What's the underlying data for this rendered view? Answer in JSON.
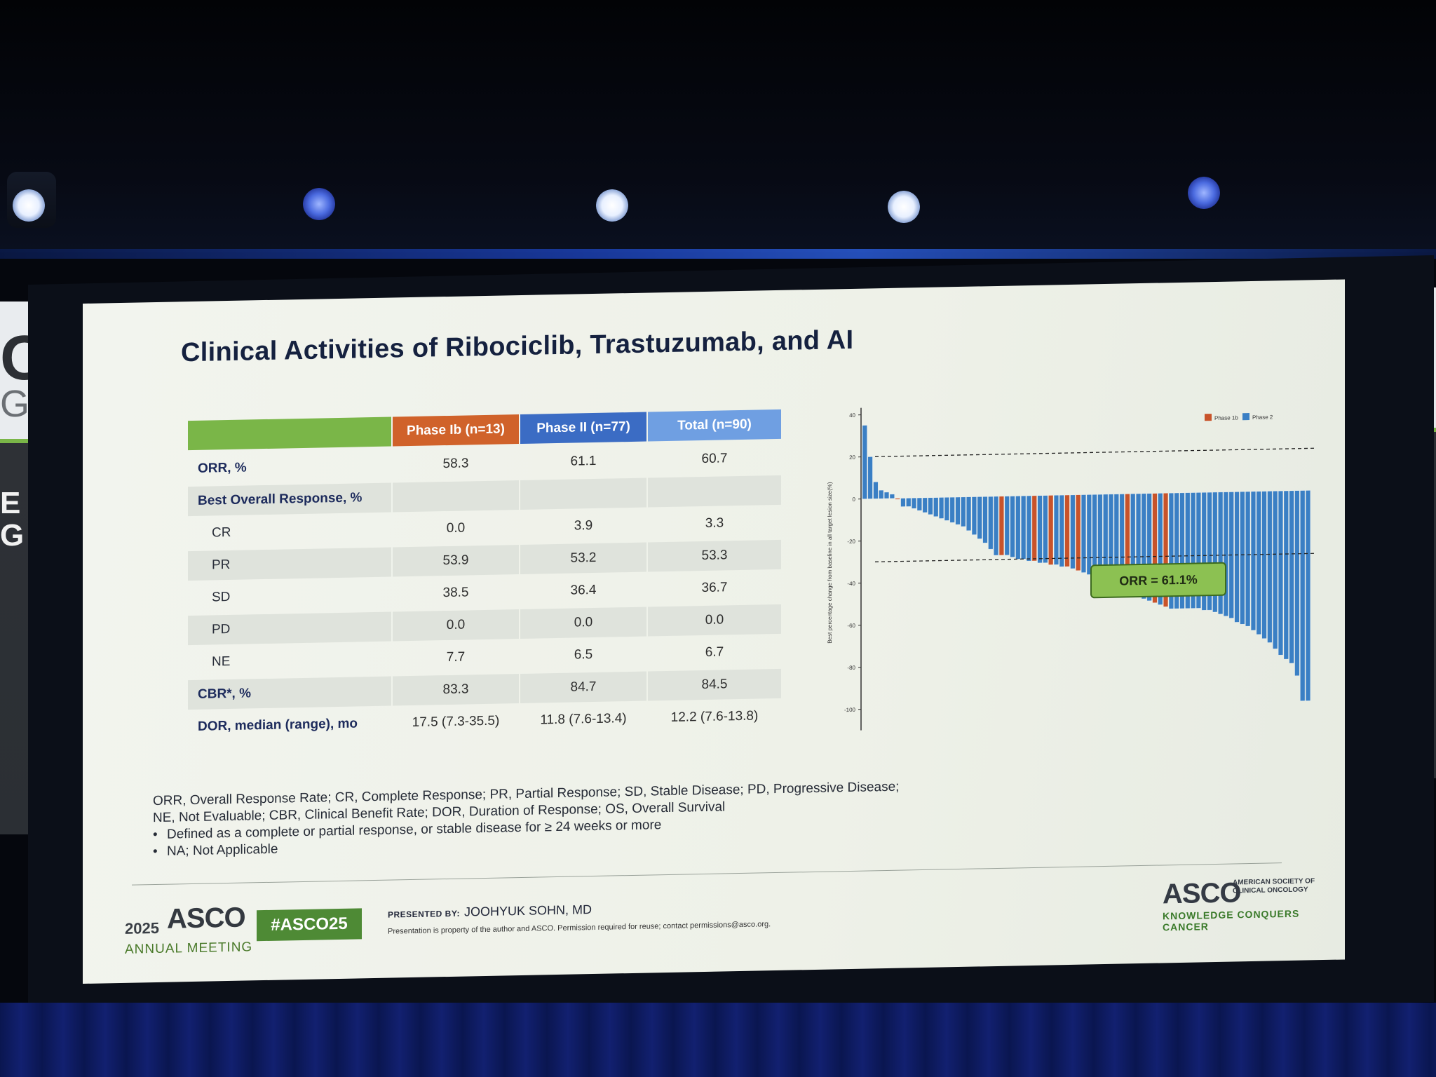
{
  "slide": {
    "title": "Clinical Activities of Ribociclib, Trastuzumab, and AI"
  },
  "table": {
    "headers": [
      "",
      "Phase Ib (n=13)",
      "Phase II (n=77)",
      "Total (n=90)"
    ],
    "rows": [
      {
        "label": "ORR, %",
        "values": [
          "58.3",
          "61.1",
          "60.7"
        ],
        "style": "bold"
      },
      {
        "label": "Best Overall Response, %",
        "values": [
          "",
          "",
          ""
        ],
        "style": "bold-shade"
      },
      {
        "label": "CR",
        "values": [
          "0.0",
          "3.9",
          "3.3"
        ],
        "style": "sub"
      },
      {
        "label": "PR",
        "values": [
          "53.9",
          "53.2",
          "53.3"
        ],
        "style": "sub-shade"
      },
      {
        "label": "SD",
        "values": [
          "38.5",
          "36.4",
          "36.7"
        ],
        "style": "sub"
      },
      {
        "label": "PD",
        "values": [
          "0.0",
          "0.0",
          "0.0"
        ],
        "style": "sub-shade"
      },
      {
        "label": "NE",
        "values": [
          "7.7",
          "6.5",
          "6.7"
        ],
        "style": "sub"
      },
      {
        "label": "CBR*, %",
        "values": [
          "83.3",
          "84.7",
          "84.5"
        ],
        "style": "bold-shade"
      },
      {
        "label": "DOR, median (range), mo",
        "values": [
          "17.5 (7.3-35.5)",
          "11.8 (7.6-13.4)",
          "12.2 (7.6-13.8)"
        ],
        "style": "bold"
      }
    ]
  },
  "chart_data": {
    "type": "bar",
    "ylabel": "Best percentage change from baseline in all target lesion size(%)",
    "ylim": [
      -100,
      40
    ],
    "yticks": [
      "40",
      "20",
      "0",
      "-20",
      "-40",
      "-60",
      "-80",
      "-100"
    ],
    "reference_lines": [
      20,
      -30
    ],
    "legend": [
      "Phase 1b",
      "Phase 2"
    ],
    "legend_position": "top-right",
    "colors": {
      "Phase 1b": "#c8532a",
      "Phase 2": "#3a7fc4"
    },
    "annotation": "ORR = 61.1%",
    "values": [
      35,
      20,
      8,
      4,
      3,
      2,
      0,
      -4,
      -4,
      -5,
      -6,
      -7,
      -8,
      -9,
      -10,
      -11,
      -12,
      -13,
      -14,
      -16,
      -18,
      -20,
      -22,
      -25,
      -28,
      -28,
      -28,
      -29,
      -30,
      -30,
      -31,
      -31,
      -32,
      -32,
      -33,
      -33,
      -34,
      -34,
      -35,
      -36,
      -37,
      -38,
      -40,
      -41,
      -42,
      -43,
      -44,
      -45,
      -46,
      -48,
      -49,
      -50,
      -51,
      -52,
      -53,
      -54,
      -55,
      -55,
      -55,
      -55,
      -55,
      -55,
      -56,
      -56,
      -57,
      -58,
      -59,
      -60,
      -62,
      -63,
      -64,
      -66,
      -68,
      -70,
      -72,
      -75,
      -78,
      -80,
      -82,
      -88,
      -100,
      -100
    ],
    "phases": [
      "2",
      "2",
      "2",
      "2",
      "2",
      "2",
      "1b",
      "2",
      "2",
      "2",
      "2",
      "2",
      "2",
      "2",
      "2",
      "2",
      "2",
      "2",
      "2",
      "2",
      "2",
      "2",
      "2",
      "2",
      "2",
      "1b",
      "2",
      "2",
      "2",
      "2",
      "2",
      "1b",
      "2",
      "2",
      "1b",
      "2",
      "2",
      "1b",
      "2",
      "1b",
      "2",
      "2",
      "2",
      "2",
      "2",
      "2",
      "2",
      "2",
      "1b",
      "2",
      "2",
      "2",
      "2",
      "1b",
      "2",
      "1b",
      "2",
      "2",
      "2",
      "2",
      "2",
      "2",
      "2",
      "2",
      "2",
      "2",
      "2",
      "2",
      "2",
      "2",
      "2",
      "2",
      "2",
      "2",
      "2",
      "2",
      "2",
      "2",
      "2",
      "2",
      "2",
      "2"
    ]
  },
  "footnotes": {
    "line1": "ORR, Overall Response Rate; CR, Complete Response; PR, Partial Response; SD, Stable Disease; PD, Progressive Disease;",
    "line2": "NE, Not Evaluable; CBR, Clinical Benefit Rate; DOR, Duration of Response; OS, Overall Survival",
    "bullet1": "Defined as a complete or partial response, or stable disease for ≥ 24 weeks or more",
    "bullet2": "NA; Not Applicable"
  },
  "footer": {
    "year": "2025",
    "asco": "ASCO",
    "meeting": "ANNUAL MEETING",
    "hashtag": "#ASCO25",
    "presented_by_label": "PRESENTED BY:",
    "presenter": "JOOHYUK SOHN, MD",
    "property": "Presentation is property of the author and ASCO. Permission required for reuse; contact permissions@asco.org.",
    "asco_right": "ASCO",
    "asco_right_sub": "AMERICAN SOCIETY OF CLINICAL ONCOLOGY",
    "tagline": "KNOWLEDGE CONQUERS CANCER"
  },
  "banner": {
    "letter1": "O",
    "letter2": "G",
    "letter3": "E",
    "letter4": "G"
  }
}
